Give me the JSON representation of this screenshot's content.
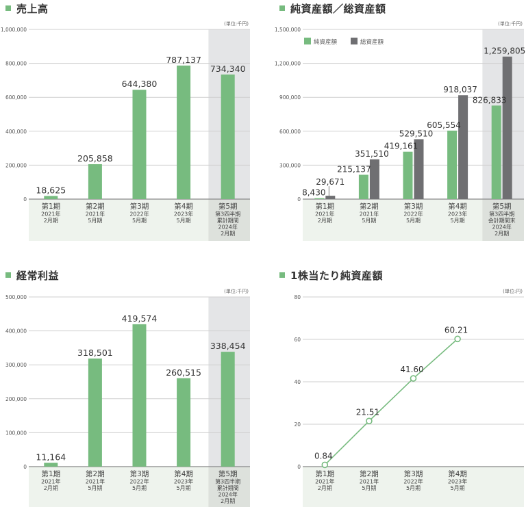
{
  "colors": {
    "green": "#77bb7f",
    "gray": "#6f6f72",
    "highlight": "#e4e5e7",
    "label_bg": "#eef3ed",
    "label_bg_hl": "#dde1dc",
    "grid": "#cfcfcf"
  },
  "charts": {
    "sales": {
      "title": "売上高",
      "unit": "(単位:千円)"
    },
    "assets": {
      "title": "純資産額／総資産額",
      "unit": "(単位:千円)",
      "legend": [
        "純資産額",
        "総資産額"
      ]
    },
    "ordinary_profit": {
      "title": "経常利益",
      "unit": "(単位:千円)"
    },
    "bps": {
      "title": "1株当たり純資産額",
      "unit": "(単位:円)"
    }
  },
  "chart_data": [
    {
      "type": "bar",
      "title": "売上高",
      "unit": "(単位:千円)",
      "categories": [
        "第1期 2021年2月期",
        "第2期 2021年5月期",
        "第3期 2022年5月期",
        "第4期 2023年5月期",
        "第5期 第3四半期累計期間 2024年2月期"
      ],
      "category_lines": [
        [
          "第1期",
          "2021年",
          "2月期"
        ],
        [
          "第2期",
          "2021年",
          "5月期"
        ],
        [
          "第3期",
          "2022年",
          "5月期"
        ],
        [
          "第4期",
          "2023年",
          "5月期"
        ],
        [
          "第5期",
          "第3四半期",
          "累計期間",
          "2024年",
          "2月期"
        ]
      ],
      "values": [
        18625,
        205858,
        644380,
        787137,
        734340
      ],
      "labels": [
        "18,625",
        "205,858",
        "644,380",
        "787,137",
        "734,340"
      ],
      "yticks": [
        0,
        200000,
        400000,
        600000,
        800000,
        1000000
      ],
      "ytick_labels": [
        "0",
        "200,000",
        "400,000",
        "600,000",
        "800,000",
        "1,000,000"
      ],
      "ylim": [
        0,
        1000000
      ],
      "highlight_index": 4,
      "grid": true
    },
    {
      "type": "bar",
      "title": "純資産額／総資産額",
      "unit": "(単位:千円)",
      "categories": [
        "第1期 2021年2月期",
        "第2期 2021年5月期",
        "第3期 2022年5月期",
        "第4期 2023年5月期",
        "第5期 第3四半期会計期間末 2024年2月期"
      ],
      "category_lines": [
        [
          "第1期",
          "2021年",
          "2月期"
        ],
        [
          "第2期",
          "2021年",
          "5月期"
        ],
        [
          "第3期",
          "2022年",
          "5月期"
        ],
        [
          "第4期",
          "2023年",
          "5月期"
        ],
        [
          "第5期",
          "第3四半期",
          "会計期間末",
          "2024年",
          "2月期"
        ]
      ],
      "series": [
        {
          "name": "純資産額",
          "values": [
            8430,
            215137,
            419161,
            605554,
            826833
          ],
          "labels": [
            "8,430",
            "215,137",
            "419,161",
            "605,554",
            "826,833"
          ]
        },
        {
          "name": "総資産額",
          "values": [
            29671,
            351510,
            529510,
            918037,
            1259805
          ],
          "labels": [
            "29,671",
            "351,510",
            "529,510",
            "918,037",
            "1,259,805"
          ]
        }
      ],
      "yticks": [
        0,
        300000,
        600000,
        900000,
        1200000,
        1500000
      ],
      "ytick_labels": [
        "0",
        "300,000",
        "600,000",
        "900,000",
        "1,200,000",
        "1,500,000"
      ],
      "ylim": [
        0,
        1500000
      ],
      "legend_position": "top-left",
      "highlight_index": 4,
      "grid": true
    },
    {
      "type": "bar",
      "title": "経常利益",
      "unit": "(単位:千円)",
      "categories": [
        "第1期 2021年2月期",
        "第2期 2021年5月期",
        "第3期 2022年5月期",
        "第4期 2023年5月期",
        "第5期 第3四半期累計期間 2024年2月期"
      ],
      "category_lines": [
        [
          "第1期",
          "2021年",
          "2月期"
        ],
        [
          "第2期",
          "2021年",
          "5月期"
        ],
        [
          "第3期",
          "2022年",
          "5月期"
        ],
        [
          "第4期",
          "2023年",
          "5月期"
        ],
        [
          "第5期",
          "第3四半期",
          "累計期間",
          "2024年",
          "2月期"
        ]
      ],
      "values": [
        11164,
        318501,
        419574,
        260515,
        338454
      ],
      "labels": [
        "11,164",
        "318,501",
        "419,574",
        "260,515",
        "338,454"
      ],
      "yticks": [
        0,
        100000,
        200000,
        300000,
        400000,
        500000
      ],
      "ytick_labels": [
        "0",
        "100,000",
        "200,000",
        "300,000",
        "400,000",
        "500,000"
      ],
      "ylim": [
        0,
        500000
      ],
      "highlight_index": 4,
      "grid": true
    },
    {
      "type": "line",
      "title": "1株当たり純資産額",
      "unit": "(単位:円)",
      "categories": [
        "第1期 2021年2月期",
        "第2期 2021年5月期",
        "第3期 2022年5月期",
        "第4期 2023年5月期"
      ],
      "category_lines": [
        [
          "第1期",
          "2021年",
          "2月期"
        ],
        [
          "第2期",
          "2021年",
          "5月期"
        ],
        [
          "第3期",
          "2022年",
          "5月期"
        ],
        [
          "第4期",
          "2023年",
          "5月期"
        ]
      ],
      "values": [
        0.84,
        21.51,
        41.6,
        60.21
      ],
      "labels": [
        "0.84",
        "21.51",
        "41.60",
        "60.21"
      ],
      "yticks": [
        0,
        20,
        40,
        60,
        80
      ],
      "ytick_labels": [
        "0",
        "20",
        "40",
        "60",
        "80"
      ],
      "ylim": [
        0,
        80
      ],
      "grid": true
    }
  ]
}
